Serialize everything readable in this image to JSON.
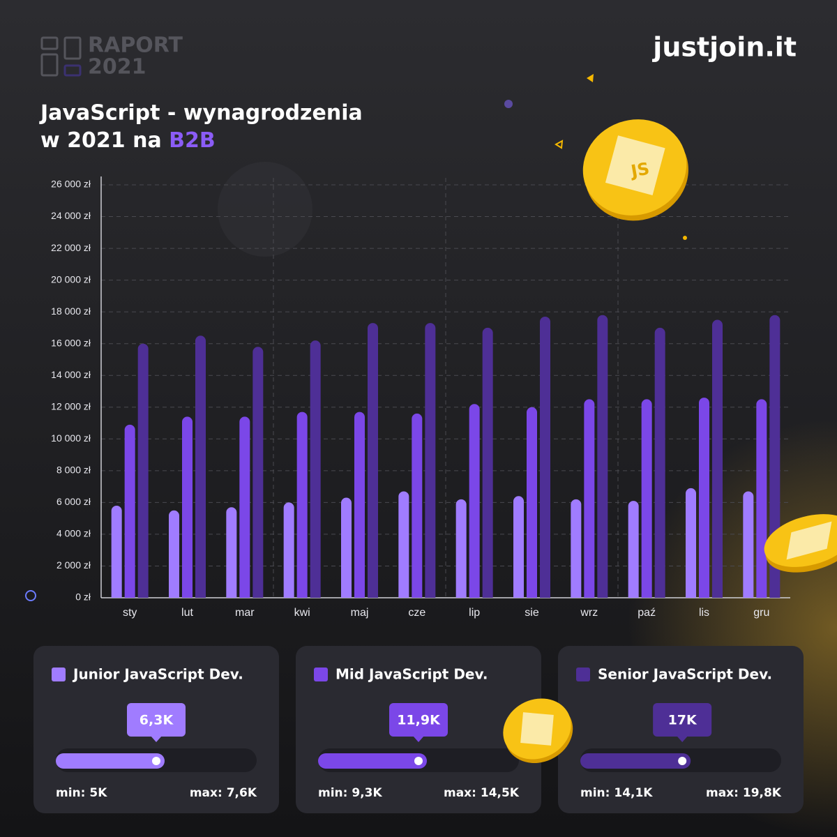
{
  "header": {
    "report_word": "RAPORT",
    "report_year": "2021",
    "brand": "justjoin.it"
  },
  "chart_data": {
    "type": "bar",
    "title_line1": "JavaScript - wynagrodzenia",
    "title_line2": "w 2021 na",
    "title_highlight": "B2B",
    "categories": [
      "sty",
      "lut",
      "mar",
      "kwi",
      "maj",
      "cze",
      "lip",
      "sie",
      "wrz",
      "paź",
      "lis",
      "gru"
    ],
    "series": [
      {
        "name": "Junior JavaScript Dev.",
        "color": "#a07cff",
        "values": [
          5800,
          5500,
          5700,
          6000,
          6300,
          6700,
          6200,
          6400,
          6200,
          6100,
          6900,
          6700
        ]
      },
      {
        "name": "Mid JavaScript Dev.",
        "color": "#7b47e8",
        "values": [
          10900,
          11400,
          11400,
          11700,
          11700,
          11600,
          12200,
          12000,
          12500,
          12500,
          12600,
          12500
        ]
      },
      {
        "name": "Senior JavaScript Dev.",
        "color": "#4e2f96",
        "values": [
          16000,
          16500,
          15800,
          16200,
          17300,
          17300,
          17000,
          17700,
          17800,
          17000,
          17500,
          17800
        ]
      }
    ],
    "ylim": [
      0,
      26000
    ],
    "yticks": [
      {
        "value": 0,
        "label": "0 zł"
      },
      {
        "value": 2000,
        "label": "2 000 zł"
      },
      {
        "value": 4000,
        "label": "4 000 zł"
      },
      {
        "value": 6000,
        "label": "6 000 zł"
      },
      {
        "value": 8000,
        "label": "8 000 zł"
      },
      {
        "value": 10000,
        "label": "10 000 zł"
      },
      {
        "value": 12000,
        "label": "12 000 zł"
      },
      {
        "value": 14000,
        "label": "14 000 zł"
      },
      {
        "value": 16000,
        "label": "16 000 zł"
      },
      {
        "value": 18000,
        "label": "18 000 zł"
      },
      {
        "value": 20000,
        "label": "20 000 zł"
      },
      {
        "value": 22000,
        "label": "22 000 zł"
      },
      {
        "value": 24000,
        "label": "24 000 zł"
      },
      {
        "value": 26000,
        "label": "26 000 zł"
      }
    ],
    "grid": true
  },
  "cards": [
    {
      "value": 6300,
      "value_label": "6,3K",
      "min": 5000,
      "min_label": "min: 5K",
      "max": 7600,
      "max_label": "max: 7,6K"
    },
    {
      "value": 11900,
      "value_label": "11,9K",
      "min": 9300,
      "min_label": "min: 9,3K",
      "max": 14500,
      "max_label": "max: 14,5K"
    },
    {
      "value": 17000,
      "value_label": "17K",
      "min": 14100,
      "min_label": "min: 14,1K",
      "max": 19800,
      "max_label": "max: 19,8K"
    }
  ]
}
